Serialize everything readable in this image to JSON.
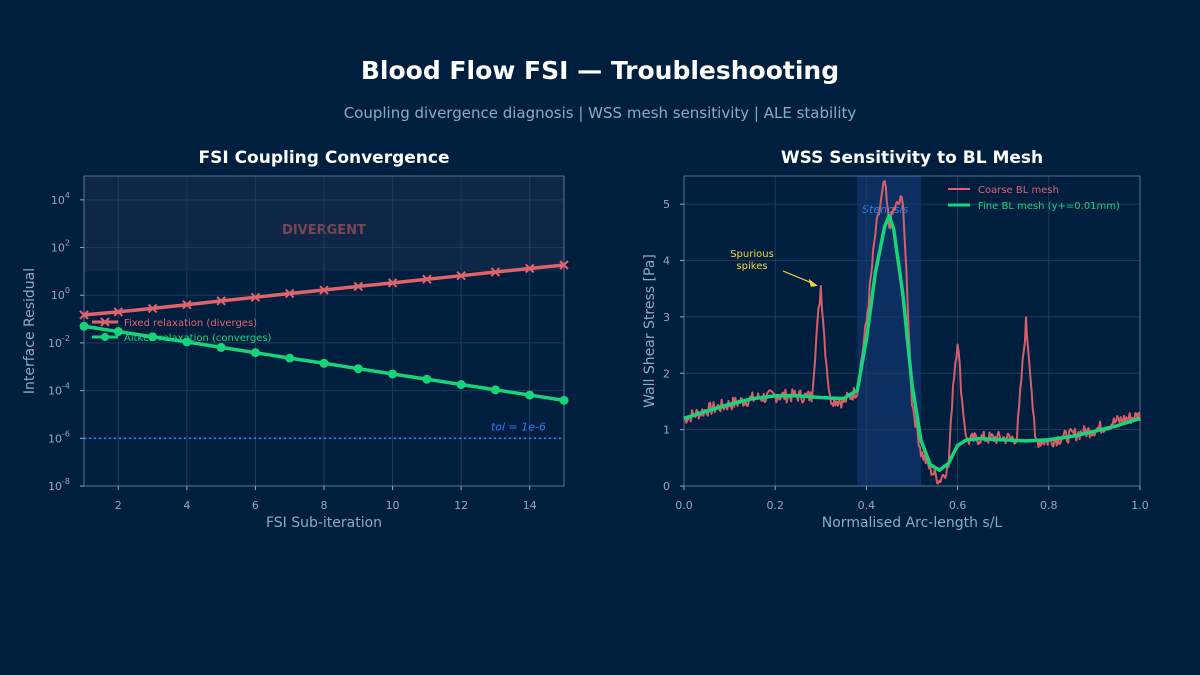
{
  "page": {
    "title": "Blood Flow FSI — Troubleshooting",
    "subtitle": "Coupling divergence diagnosis  |  WSS mesh sensitivity  |  ALE stability"
  },
  "colors": {
    "background": "#001f3f",
    "red": "#e0626a",
    "green": "#17d47a",
    "blue": "#2f7cf6",
    "yellow": "#f5d53b",
    "divergent_text": "#7a4556"
  },
  "chart_data": [
    {
      "type": "line",
      "title": "FSI Coupling Convergence",
      "xlabel": "FSI Sub-iteration",
      "ylabel": "Interface Residual",
      "yscale": "log",
      "xlim": [
        1,
        15
      ],
      "ylim_exp": [
        -8,
        5
      ],
      "x_ticks": [
        2,
        4,
        6,
        8,
        10,
        12,
        14
      ],
      "y_tick_exps": [
        -8,
        -6,
        -4,
        -2,
        0,
        2,
        4
      ],
      "x": [
        1,
        2,
        3,
        4,
        5,
        6,
        7,
        8,
        9,
        10,
        11,
        12,
        13,
        14,
        15
      ],
      "series": [
        {
          "name": "Fixed relaxation (diverges)",
          "color": "#e0626a",
          "marker": "x",
          "values": [
            0.15,
            0.2,
            0.28,
            0.4,
            0.58,
            0.82,
            1.18,
            1.65,
            2.35,
            3.3,
            4.7,
            6.6,
            9.4,
            13.2,
            18.5
          ]
        },
        {
          "name": "Aitken relaxation (converges)",
          "color": "#17d47a",
          "marker": "o",
          "values": [
            0.05,
            0.03,
            0.018,
            0.011,
            0.0065,
            0.0039,
            0.0023,
            0.0014,
            0.00083,
            0.0005,
            0.0003,
            0.00018,
            0.000108,
            6.5e-05,
            3.9e-05
          ]
        }
      ],
      "tolerance": {
        "value": 1e-06,
        "label": "tol = 1e-6"
      },
      "divergent_region": {
        "from_exp": 1,
        "label": "DIVERGENT"
      },
      "legend": "center-left"
    },
    {
      "type": "line",
      "title": "WSS Sensitivity to BL Mesh",
      "xlabel": "Normalised Arc-length s/L",
      "ylabel": "Wall Shear Stress [Pa]",
      "xlim": [
        0,
        1
      ],
      "ylim": [
        0,
        5.5
      ],
      "x_ticks": [
        0.0,
        0.2,
        0.4,
        0.6,
        0.8,
        1.0
      ],
      "y_ticks": [
        0,
        1,
        2,
        3,
        4,
        5
      ],
      "series": [
        {
          "name": "Coarse BL mesh",
          "color": "#e0626a",
          "x": [
            0,
            0.05,
            0.1,
            0.15,
            0.2,
            0.25,
            0.28,
            0.29,
            0.3,
            0.31,
            0.32,
            0.35,
            0.38,
            0.4,
            0.42,
            0.44,
            0.45,
            0.46,
            0.48,
            0.5,
            0.52,
            0.54,
            0.56,
            0.58,
            0.59,
            0.6,
            0.61,
            0.62,
            0.65,
            0.7,
            0.73,
            0.74,
            0.75,
            0.76,
            0.77,
            0.8,
            0.85,
            0.9,
            0.95,
            1.0
          ],
          "values": [
            1.2,
            1.35,
            1.45,
            1.55,
            1.6,
            1.6,
            1.58,
            2.6,
            3.55,
            2.4,
            1.55,
            1.5,
            1.7,
            2.9,
            4.5,
            5.4,
            4.6,
            4.9,
            5.1,
            1.5,
            0.6,
            0.3,
            0.1,
            0.35,
            1.8,
            2.6,
            1.5,
            0.8,
            0.85,
            0.85,
            0.85,
            1.9,
            2.9,
            2.0,
            0.8,
            0.8,
            0.9,
            1.0,
            1.15,
            1.25
          ],
          "noise": 0.12
        },
        {
          "name": "Fine BL mesh (y+=0.01mm)",
          "color": "#17d47a",
          "x": [
            0,
            0.05,
            0.1,
            0.15,
            0.2,
            0.25,
            0.3,
            0.35,
            0.38,
            0.4,
            0.42,
            0.44,
            0.45,
            0.46,
            0.48,
            0.5,
            0.52,
            0.54,
            0.56,
            0.58,
            0.6,
            0.62,
            0.65,
            0.7,
            0.75,
            0.8,
            0.85,
            0.9,
            0.95,
            1.0
          ],
          "values": [
            1.2,
            1.33,
            1.45,
            1.55,
            1.6,
            1.6,
            1.57,
            1.55,
            1.7,
            2.6,
            3.8,
            4.6,
            4.8,
            4.55,
            3.4,
            1.8,
            0.8,
            0.38,
            0.28,
            0.4,
            0.72,
            0.82,
            0.84,
            0.82,
            0.8,
            0.82,
            0.88,
            0.97,
            1.07,
            1.2
          ]
        }
      ],
      "stenosis_band": {
        "from": 0.38,
        "to": 0.52,
        "label": "Stenosis"
      },
      "annotation": {
        "text_line1": "Spurious",
        "text_line2": "spikes",
        "target_x": 0.3,
        "target_y": 3.55
      },
      "legend": "top-right"
    }
  ]
}
